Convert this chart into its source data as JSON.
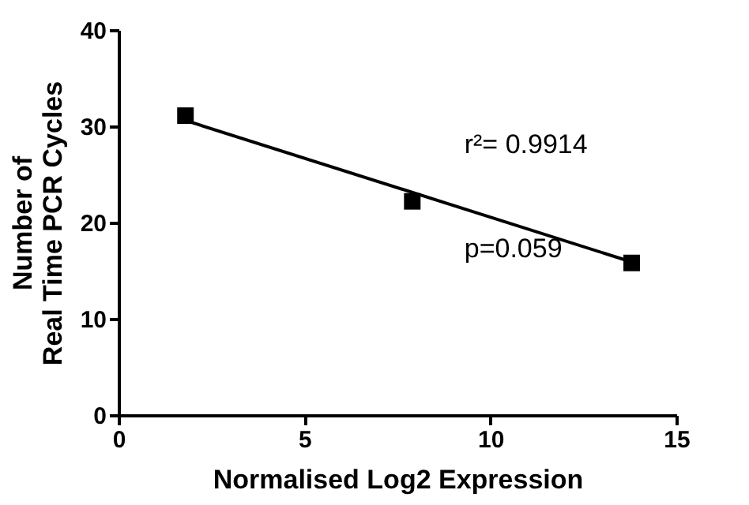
{
  "chart_data": {
    "type": "scatter",
    "xlabel": "Normalised Log2 Expression",
    "ylabel": "Number of\nReal Time PCR Cycles",
    "xlim": [
      0,
      15
    ],
    "xticks": [
      0,
      5,
      10,
      15
    ],
    "ylim": [
      0,
      40
    ],
    "yticks": [
      0,
      10,
      20,
      30,
      40
    ],
    "grid": false,
    "legend": false,
    "marker": "square",
    "series": [
      {
        "type": "scatter",
        "color": "#000000",
        "x": [
          1.8,
          7.9,
          13.8
        ],
        "values": [
          31.1,
          22.2,
          15.8
        ]
      },
      {
        "type": "line",
        "color": "#000000",
        "x": [
          1.8,
          13.8
        ],
        "values": [
          30.6,
          15.9
        ],
        "line_style": "solid",
        "marker": "none"
      }
    ],
    "annotations": [
      "r²= 0.9914",
      "p=0.059"
    ]
  }
}
